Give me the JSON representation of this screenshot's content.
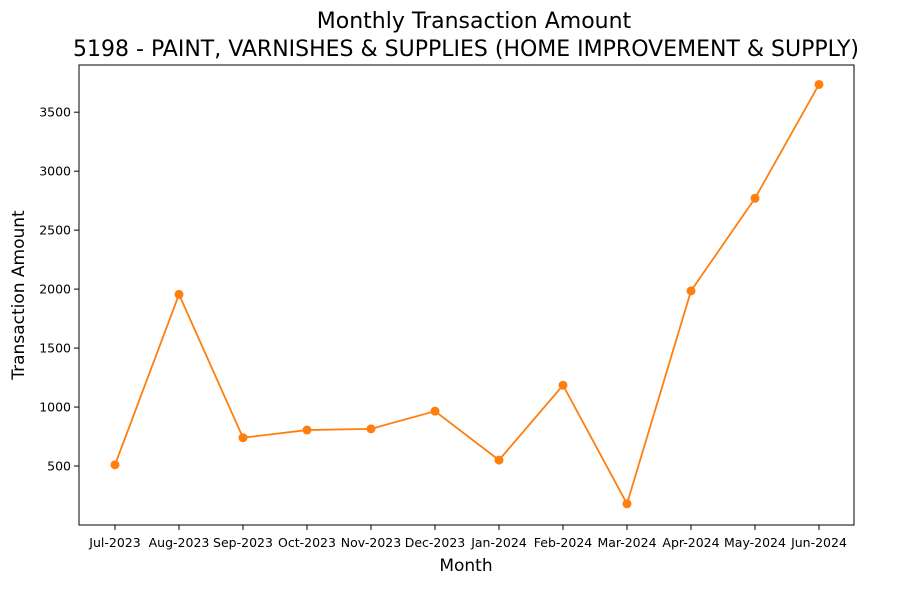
{
  "chart_data": {
    "type": "line",
    "title": "Monthly Transaction Amount",
    "subtitle": "5198 - PAINT, VARNISHES & SUPPLIES (HOME IMPROVEMENT & SUPPLY)",
    "xlabel": "Month",
    "ylabel": "Transaction Amount",
    "categories": [
      "Jul-2023",
      "Aug-2023",
      "Sep-2023",
      "Oct-2023",
      "Nov-2023",
      "Dec-2023",
      "Jan-2024",
      "Feb-2024",
      "Mar-2024",
      "Apr-2024",
      "May-2024",
      "Jun-2024"
    ],
    "series": [
      {
        "values": [
          510,
          1955,
          740,
          805,
          815,
          965,
          550,
          1185,
          180,
          1985,
          2770,
          3735
        ],
        "color": "#ff7f0e",
        "marker": "circle"
      }
    ],
    "yticks": [
      500,
      1000,
      1500,
      2000,
      2500,
      3000,
      3500
    ],
    "ylim": [
      0,
      3900
    ],
    "grid": false,
    "legend": "none"
  }
}
